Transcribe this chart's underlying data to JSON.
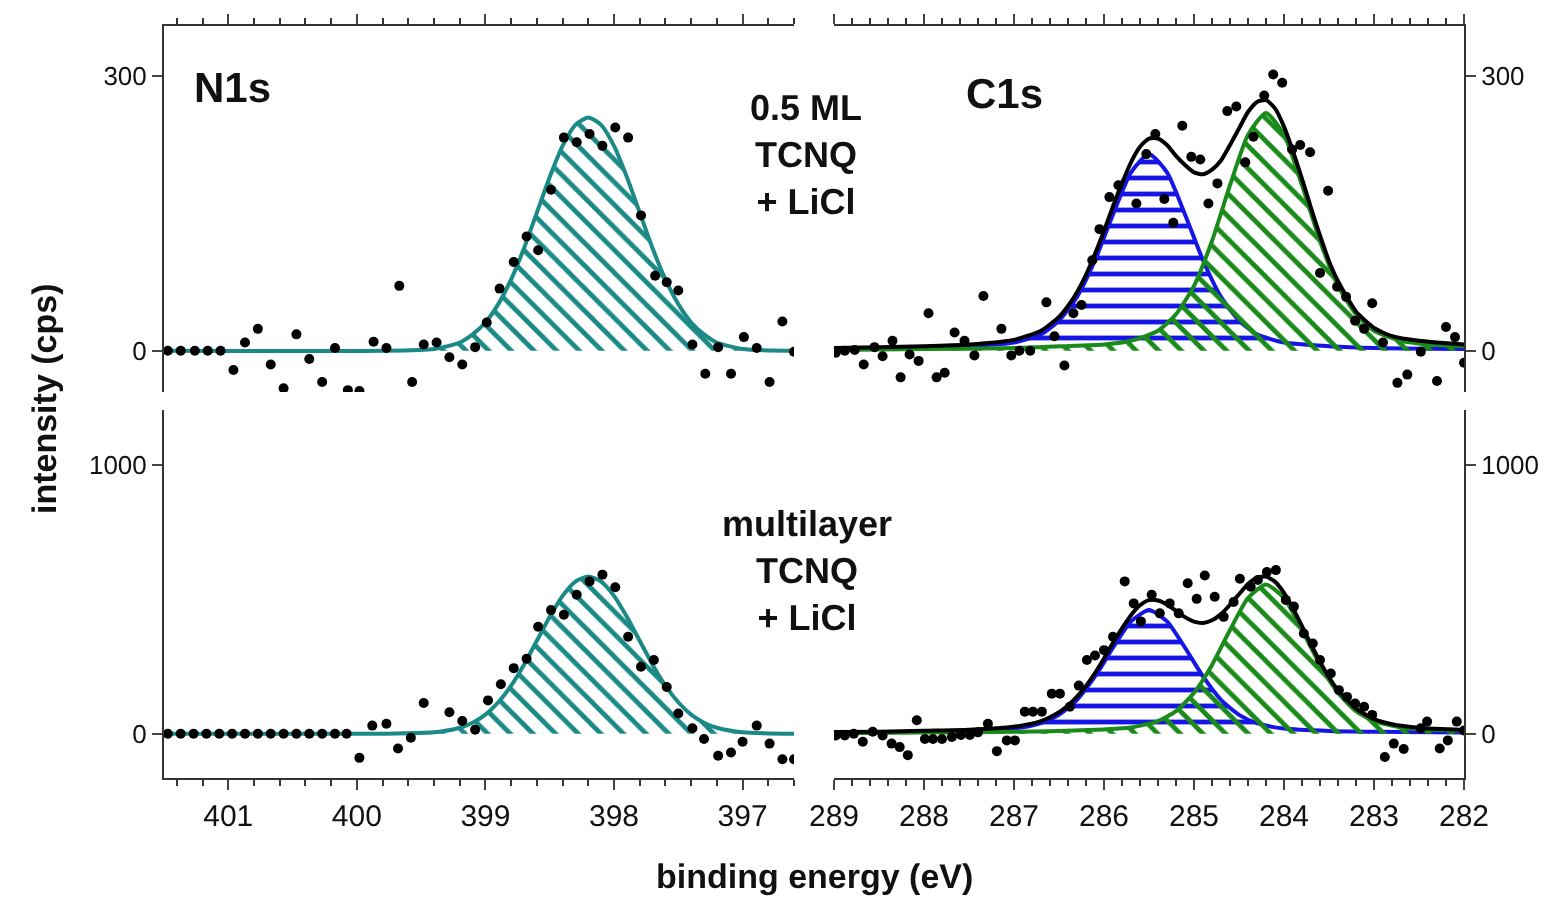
{
  "chart_data": [
    {
      "type": "scatter",
      "ylabel": "intensity (cps)",
      "annotations": [
        "N1s",
        "0.5 ML\nTCNQ\n+ LiCl"
      ],
      "xlim": [
        401.5,
        396.6
      ],
      "xticks": [
        401,
        400,
        399,
        398,
        397
      ],
      "ylim": [
        -45,
        355
      ],
      "yticks": [
        0,
        300
      ],
      "tick_labels": "y",
      "series": [
        {
          "type": "area",
          "color": "#1b8a86",
          "x": [
            401.5,
            399.8,
            399.4,
            399.2,
            399.1,
            399.0,
            398.9,
            398.8,
            398.7,
            398.6,
            398.5,
            398.4,
            398.3,
            398.2,
            398.1,
            398.0,
            397.9,
            397.8,
            397.7,
            397.6,
            397.5,
            397.4,
            397.3,
            397.2,
            397.0,
            396.6
          ],
          "values": [
            0,
            0,
            2,
            9,
            18,
            31,
            51,
            78,
            112,
            151,
            190,
            224,
            247,
            255,
            247,
            224,
            190,
            151,
            112,
            78,
            51,
            31,
            18,
            9,
            2,
            0
          ]
        },
        {
          "marker": "circle",
          "color": "#000000",
          "x": [
            401.47,
            401.37,
            401.26,
            401.16,
            401.06,
            400.96,
            400.87,
            400.77,
            400.67,
            400.57,
            400.47,
            400.37,
            400.27,
            400.17,
            400.07,
            399.98,
            399.87,
            399.77,
            399.67,
            399.57,
            399.48,
            399.38,
            399.28,
            399.18,
            399.08,
            398.99,
            398.89,
            398.78,
            398.68,
            398.59,
            398.49,
            398.39,
            398.29,
            398.19,
            398.09,
            397.99,
            397.89,
            397.79,
            397.68,
            397.59,
            397.5,
            397.39,
            397.29,
            397.19,
            397.09,
            396.99,
            396.89,
            396.79,
            396.69,
            396.6
          ],
          "values": [
            0,
            0,
            0,
            0,
            0,
            -21,
            9,
            24,
            -15,
            -41,
            18,
            -9,
            -34,
            3,
            -43,
            -44,
            10,
            3,
            71,
            -34,
            7,
            9,
            -7,
            -15,
            4,
            31,
            68,
            97,
            125,
            110,
            176,
            233,
            228,
            237,
            224,
            244,
            233,
            148,
            82,
            75,
            66,
            7,
            -25,
            4,
            -25,
            15,
            3,
            -34,
            32,
            -1
          ]
        }
      ]
    },
    {
      "type": "scatter",
      "annotations": [
        "C1s"
      ],
      "xlim": [
        289,
        282
      ],
      "xticks": [
        289,
        288,
        287,
        286,
        285,
        284,
        283,
        282
      ],
      "ylim": [
        -45,
        355
      ],
      "yticks": [
        0,
        300
      ],
      "tick_labels": "y",
      "series": [
        {
          "type": "area",
          "color": "#1515e6",
          "x": [
            289,
            288,
            287.5,
            287,
            286.7,
            286.5,
            286.3,
            286.1,
            285.9,
            285.7,
            285.5,
            285.3,
            285.1,
            284.9,
            284.7,
            284.5,
            284.3,
            284,
            283.5,
            283,
            282
          ],
          "values": [
            2,
            3,
            5,
            9,
            18,
            33,
            59,
            99,
            149,
            195,
            215,
            195,
            149,
            99,
            59,
            33,
            18,
            9,
            5,
            3,
            2
          ]
        },
        {
          "type": "area",
          "color": "#1a8a1a",
          "x": [
            289,
            288,
            287,
            286.5,
            286,
            285.7,
            285.4,
            285.2,
            285.0,
            284.8,
            284.6,
            284.4,
            284.2,
            284.0,
            283.8,
            283.6,
            283.4,
            283.2,
            283.0,
            282.7,
            282.4,
            282
          ],
          "values": [
            1,
            2,
            3,
            5,
            7,
            11,
            22,
            40,
            71,
            120,
            181,
            236,
            260,
            236,
            181,
            120,
            71,
            40,
            22,
            11,
            7,
            5
          ]
        },
        {
          "type": "line",
          "color": "#000000",
          "x": [
            289.0,
            288.5,
            288.0,
            287.5,
            287.0,
            286.7,
            286.5,
            286.4,
            286.3,
            286.2,
            286.1,
            286.0,
            285.9,
            285.8,
            285.7,
            285.6,
            285.5,
            285.4,
            285.3,
            285.2,
            285.1,
            285.0,
            284.9,
            284.8,
            284.7,
            284.6,
            284.5,
            284.4,
            284.3,
            284.2,
            284.1,
            284.0,
            283.9,
            283.8,
            283.7,
            283.6,
            283.5,
            283.4,
            283.2,
            283.0,
            282.8,
            282.5,
            282.0
          ],
          "values": [
            3,
            4,
            5,
            7,
            12,
            22,
            37,
            49,
            64,
            83,
            106,
            131,
            158,
            183,
            206,
            223,
            232,
            232,
            225,
            213,
            203,
            195,
            193,
            198,
            208,
            225,
            243,
            261,
            272,
            274,
            265,
            245,
            218,
            188,
            156,
            126,
            98,
            76,
            43,
            25,
            16,
            11,
            7
          ]
        },
        {
          "marker": "circle",
          "color": "#000000",
          "x": [
            288.98,
            288.88,
            288.77,
            288.67,
            288.55,
            288.46,
            288.35,
            288.26,
            288.16,
            288.06,
            287.95,
            287.86,
            287.77,
            287.66,
            287.55,
            287.44,
            287.34,
            287.14,
            287.03,
            286.94,
            286.82,
            286.64,
            286.55,
            286.44,
            286.34,
            286.25,
            286.13,
            286.05,
            285.94,
            285.84,
            285.64,
            285.53,
            285.43,
            285.33,
            285.23,
            285.13,
            285.03,
            284.93,
            284.84,
            284.74,
            284.63,
            284.53,
            284.43,
            284.34,
            284.22,
            284.12,
            284.02,
            283.91,
            283.82,
            283.71,
            283.6,
            283.51,
            283.41,
            283.31,
            283.21,
            283.11,
            283.02,
            282.9,
            282.74,
            282.63,
            282.48,
            282.3,
            282.2,
            282.1,
            282.0
          ],
          "values": [
            -2,
            0,
            1,
            -15,
            4,
            -6,
            11,
            -29,
            -4,
            -11,
            41,
            -29,
            -24,
            20,
            11,
            -5,
            60,
            24,
            -5,
            0,
            0,
            53,
            16,
            -16,
            41,
            50,
            99,
            133,
            168,
            181,
            161,
            215,
            237,
            166,
            140,
            246,
            212,
            209,
            161,
            183,
            262,
            267,
            206,
            234,
            279,
            302,
            293,
            220,
            225,
            217,
            85,
            175,
            70,
            59,
            33,
            24,
            52,
            9,
            -35,
            -26,
            -1,
            -33,
            26,
            15,
            -13
          ]
        }
      ]
    },
    {
      "type": "scatter",
      "xlabel": "binding energy (eV)",
      "annotations": [
        "multilayer\nTCNQ\n+ LiCl"
      ],
      "xlim": [
        401.5,
        396.6
      ],
      "xticks": [
        401,
        400,
        399,
        398,
        397
      ],
      "ylim": [
        -165,
        1205
      ],
      "yticks": [
        0,
        1000
      ],
      "series": [
        {
          "type": "area",
          "color": "#1b8a86",
          "x": [
            401.5,
            399.8,
            399.4,
            399.2,
            399.1,
            399.0,
            398.9,
            398.8,
            398.7,
            398.6,
            398.5,
            398.4,
            398.3,
            398.2,
            398.1,
            398.0,
            397.9,
            397.8,
            397.7,
            397.6,
            397.5,
            397.4,
            397.3,
            397.2,
            397.0,
            396.6
          ],
          "values": [
            0,
            0,
            5,
            22,
            41,
            71,
            117,
            179,
            257,
            346,
            435,
            513,
            566,
            585,
            566,
            513,
            435,
            346,
            257,
            179,
            117,
            71,
            41,
            22,
            5,
            0
          ]
        },
        {
          "marker": "circle",
          "color": "#000000",
          "x": [
            401.47,
            401.37,
            401.27,
            401.17,
            401.07,
            400.97,
            400.87,
            400.77,
            400.67,
            400.57,
            400.47,
            400.37,
            400.27,
            400.17,
            400.08,
            399.98,
            399.88,
            399.77,
            399.68,
            399.58,
            399.48,
            399.28,
            399.18,
            399.08,
            398.98,
            398.88,
            398.78,
            398.68,
            398.59,
            398.49,
            398.39,
            398.29,
            398.19,
            398.09,
            397.99,
            397.89,
            397.79,
            397.69,
            397.59,
            397.5,
            397.39,
            397.3,
            397.19,
            397.09,
            397.0,
            396.89,
            396.79,
            396.69,
            396.6
          ],
          "values": [
            0,
            0,
            0,
            0,
            0,
            0,
            0,
            0,
            0,
            0,
            0,
            0,
            0,
            0,
            0,
            -90,
            30,
            37,
            -55,
            -15,
            114,
            80,
            47,
            15,
            124,
            184,
            244,
            279,
            398,
            460,
            443,
            517,
            567,
            592,
            545,
            361,
            249,
            274,
            174,
            75,
            20,
            -20,
            -82,
            -70,
            -30,
            30,
            -37,
            -95,
            -95
          ]
        }
      ]
    },
    {
      "type": "scatter",
      "xlim": [
        289,
        282
      ],
      "xticks": [
        289,
        288,
        287,
        286,
        285,
        284,
        283,
        282
      ],
      "ylim": [
        -165,
        1205
      ],
      "yticks": [
        0,
        1000
      ],
      "series": [
        {
          "type": "area",
          "color": "#1515e6",
          "x": [
            289,
            288,
            287.5,
            287,
            286.7,
            286.5,
            286.3,
            286.1,
            285.9,
            285.7,
            285.5,
            285.3,
            285.1,
            284.9,
            284.7,
            284.5,
            284.3,
            284,
            283.5,
            283,
            282
          ],
          "values": [
            4,
            7,
            10,
            19,
            39,
            70,
            126,
            213,
            320,
            418,
            460,
            418,
            320,
            213,
            126,
            70,
            39,
            19,
            10,
            7,
            4
          ]
        },
        {
          "type": "area",
          "color": "#1a8a1a",
          "x": [
            289,
            288,
            287,
            286.5,
            286,
            285.7,
            285.4,
            285.2,
            285.0,
            284.8,
            284.6,
            284.4,
            284.2,
            284.0,
            283.8,
            283.6,
            283.4,
            283.2,
            283.0,
            282.7,
            282.4,
            282
          ],
          "values": [
            2,
            4,
            7,
            10,
            16,
            23,
            47,
            84,
            152,
            256,
            386,
            505,
            555,
            505,
            386,
            256,
            152,
            84,
            47,
            23,
            16,
            12
          ]
        },
        {
          "type": "line",
          "color": "#000000",
          "x": [
            289.0,
            288.5,
            288.0,
            287.5,
            287.0,
            286.7,
            286.5,
            286.4,
            286.3,
            286.2,
            286.1,
            286.0,
            285.9,
            285.8,
            285.7,
            285.6,
            285.5,
            285.4,
            285.3,
            285.2,
            285.1,
            285.0,
            284.9,
            284.8,
            284.7,
            284.6,
            284.5,
            284.4,
            284.3,
            284.2,
            284.1,
            284.0,
            283.9,
            283.8,
            283.7,
            283.6,
            283.5,
            283.4,
            283.2,
            283.0,
            282.8,
            282.5,
            282.0
          ],
          "values": [
            6,
            7,
            11,
            15,
            26,
            47,
            80,
            105,
            138,
            178,
            226,
            280,
            338,
            392,
            441,
            478,
            497,
            496,
            481,
            457,
            434,
            417,
            412,
            422,
            445,
            480,
            519,
            557,
            581,
            585,
            566,
            524,
            466,
            400,
            332,
            268,
            210,
            162,
            93,
            54,
            35,
            22,
            14
          ]
        },
        {
          "marker": "circle",
          "color": "#000000",
          "x": [
            288.98,
            288.88,
            288.78,
            288.68,
            288.57,
            288.46,
            288.36,
            288.27,
            288.18,
            288.08,
            287.99,
            287.9,
            287.8,
            287.69,
            287.59,
            287.49,
            287.4,
            287.29,
            287.19,
            287.08,
            286.99,
            286.88,
            286.79,
            286.69,
            286.58,
            286.49,
            286.38,
            286.28,
            286.19,
            286.1,
            286.0,
            285.9,
            285.77,
            285.67,
            285.59,
            285.47,
            285.38,
            285.27,
            285.17,
            285.07,
            284.97,
            284.88,
            284.77,
            284.67,
            284.56,
            284.49,
            284.37,
            284.29,
            284.19,
            284.09,
            283.98,
            283.89,
            283.78,
            283.68,
            283.6,
            283.48,
            283.39,
            283.3,
            283.21,
            283.11,
            283.02,
            282.88,
            282.78,
            282.67,
            282.48,
            282.41,
            282.27,
            282.18,
            282.08,
            282.0
          ],
          "values": [
            -7,
            -7,
            0,
            -30,
            7,
            -7,
            -37,
            -50,
            -80,
            50,
            -20,
            -20,
            -20,
            -12,
            -5,
            -5,
            5,
            37,
            -65,
            -25,
            -25,
            82,
            82,
            82,
            149,
            149,
            100,
            179,
            274,
            291,
            311,
            361,
            567,
            485,
            418,
            517,
            448,
            485,
            448,
            560,
            502,
            589,
            510,
            435,
            490,
            577,
            547,
            572,
            602,
            609,
            498,
            473,
            373,
            336,
            274,
            224,
            162,
            137,
            112,
            100,
            70,
            -87,
            -37,
            -57,
            20,
            45,
            -55,
            -25,
            45,
            12
          ]
        }
      ]
    }
  ]
}
